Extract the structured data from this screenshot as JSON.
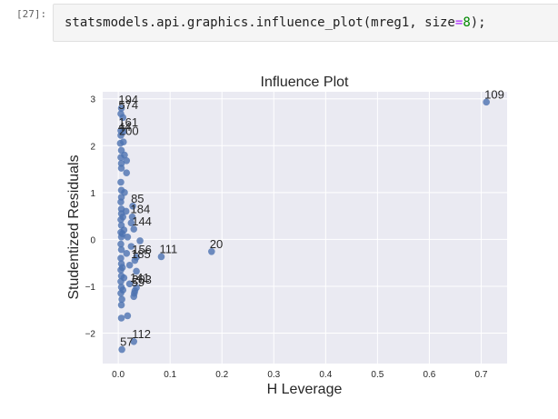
{
  "cell": {
    "prompt": "[27]:",
    "code": {
      "call": "statsmodels.api.graphics.influence_plot(mreg1, size",
      "op": "=",
      "num": "8",
      "tail": ");"
    }
  },
  "chart_data": {
    "type": "scatter",
    "title": "Influence Plot",
    "xlabel": "H Leverage",
    "ylabel": "Studentized Residuals",
    "xlim": [
      -0.03,
      0.75
    ],
    "ylim": [
      -2.65,
      3.15
    ],
    "xticks": [
      "0.0",
      "0.1",
      "0.2",
      "0.3",
      "0.4",
      "0.5",
      "0.6",
      "0.7"
    ],
    "yticks": [
      "−2",
      "−1",
      "0",
      "1",
      "2",
      "3"
    ],
    "grid": true,
    "point_color": "#4c72b0",
    "background": "#eaeaf2",
    "points": [
      {
        "x": 0.71,
        "y": 2.93
      },
      {
        "x": 0.18,
        "y": -0.26
      },
      {
        "x": 0.083,
        "y": -0.37
      },
      {
        "x": 0.042,
        "y": -0.03
      },
      {
        "x": 0.035,
        "y": -0.38
      },
      {
        "x": 0.032,
        "y": -0.45
      },
      {
        "x": 0.035,
        "y": -0.68
      },
      {
        "x": 0.035,
        "y": -1.03
      },
      {
        "x": 0.032,
        "y": -1.1
      },
      {
        "x": 0.031,
        "y": -1.15
      },
      {
        "x": 0.03,
        "y": -1.22
      },
      {
        "x": 0.03,
        "y": -2.18
      },
      {
        "x": 0.018,
        "y": -1.63
      },
      {
        "x": 0.007,
        "y": -2.35
      },
      {
        "x": 0.028,
        "y": 0.71
      },
      {
        "x": 0.027,
        "y": 0.48
      },
      {
        "x": 0.03,
        "y": 0.22
      },
      {
        "x": 0.025,
        "y": 0.35
      },
      {
        "x": 0.025,
        "y": -0.15
      },
      {
        "x": 0.022,
        "y": -0.55
      },
      {
        "x": 0.022,
        "y": -0.95
      },
      {
        "x": 0.018,
        "y": 0.05
      },
      {
        "x": 0.015,
        "y": 0.6
      },
      {
        "x": 0.016,
        "y": -0.3
      },
      {
        "x": 0.016,
        "y": 1.68
      },
      {
        "x": 0.016,
        "y": 1.42
      },
      {
        "x": 0.012,
        "y": 1.8
      },
      {
        "x": 0.012,
        "y": 1.0
      },
      {
        "x": 0.011,
        "y": 0.2
      },
      {
        "x": 0.011,
        "y": -0.82
      },
      {
        "x": 0.01,
        "y": 2.08
      },
      {
        "x": 0.01,
        "y": 2.3
      },
      {
        "x": 0.009,
        "y": 2.6
      },
      {
        "x": 0.006,
        "y": 2.8
      },
      {
        "x": 0.005,
        "y": 2.68
      },
      {
        "x": 0.005,
        "y": 2.32
      },
      {
        "x": 0.005,
        "y": 2.22
      },
      {
        "x": 0.004,
        "y": 2.05
      },
      {
        "x": 0.006,
        "y": 1.9
      },
      {
        "x": 0.005,
        "y": 1.75
      },
      {
        "x": 0.006,
        "y": 1.62
      },
      {
        "x": 0.006,
        "y": 1.52
      },
      {
        "x": 0.005,
        "y": 1.22
      },
      {
        "x": 0.006,
        "y": 1.05
      },
      {
        "x": 0.006,
        "y": 0.9
      },
      {
        "x": 0.005,
        "y": 0.8
      },
      {
        "x": 0.006,
        "y": 0.65
      },
      {
        "x": 0.006,
        "y": 0.55
      },
      {
        "x": 0.005,
        "y": 0.42
      },
      {
        "x": 0.006,
        "y": 0.3
      },
      {
        "x": 0.005,
        "y": 0.15
      },
      {
        "x": 0.006,
        "y": 0.05
      },
      {
        "x": 0.005,
        "y": -0.1
      },
      {
        "x": 0.006,
        "y": -0.22
      },
      {
        "x": 0.005,
        "y": -0.4
      },
      {
        "x": 0.006,
        "y": -0.52
      },
      {
        "x": 0.005,
        "y": -0.65
      },
      {
        "x": 0.006,
        "y": -0.78
      },
      {
        "x": 0.005,
        "y": -0.9
      },
      {
        "x": 0.006,
        "y": -1.02
      },
      {
        "x": 0.005,
        "y": -1.15
      },
      {
        "x": 0.007,
        "y": -1.28
      },
      {
        "x": 0.006,
        "y": -1.4
      },
      {
        "x": 0.006,
        "y": -1.68
      },
      {
        "x": 0.008,
        "y": 0.12
      },
      {
        "x": 0.008,
        "y": -0.6
      },
      {
        "x": 0.009,
        "y": 0.48
      },
      {
        "x": 0.009,
        "y": -1.08
      }
    ],
    "annotations": [
      {
        "label": "109",
        "x": 0.71,
        "y": 2.93
      },
      {
        "label": "20",
        "x": 0.18,
        "y": -0.26
      },
      {
        "label": "111",
        "x": 0.083,
        "y": -0.37
      },
      {
        "label": "85",
        "x": 0.028,
        "y": 0.71
      },
      {
        "label": "184",
        "x": 0.027,
        "y": 0.48
      },
      {
        "label": "144",
        "x": 0.03,
        "y": 0.22
      },
      {
        "label": "156",
        "x": 0.03,
        "y": -0.38
      },
      {
        "label": "185",
        "x": 0.028,
        "y": -0.48
      },
      {
        "label": "141",
        "x": 0.026,
        "y": -0.98
      },
      {
        "label": "203",
        "x": 0.03,
        "y": -1.02
      },
      {
        "label": "59",
        "x": 0.029,
        "y": -1.08
      },
      {
        "label": "112",
        "x": 0.03,
        "y": -2.18
      },
      {
        "label": "57",
        "x": 0.007,
        "y": -2.35
      },
      {
        "label": "194",
        "x": 0.004,
        "y": 2.82
      },
      {
        "label": "574",
        "x": 0.004,
        "y": 2.7
      },
      {
        "label": "161",
        "x": 0.004,
        "y": 2.34
      },
      {
        "label": "44",
        "x": 0.003,
        "y": 2.24
      },
      {
        "label": "200",
        "x": 0.005,
        "y": 2.15
      }
    ]
  }
}
